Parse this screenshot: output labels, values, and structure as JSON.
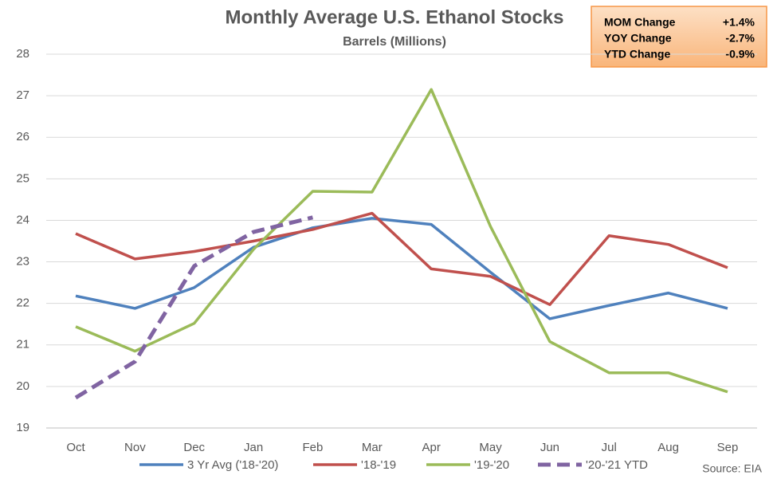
{
  "chart_data": {
    "type": "line",
    "title": "Monthly Average U.S. Ethanol Stocks",
    "subtitle": "Barrels (Millions)",
    "source": "Source: EIA",
    "summary": [
      {
        "label": "MOM Change",
        "value": "+1.4%"
      },
      {
        "label": "YOY Change",
        "value": "-2.7%"
      },
      {
        "label": "YTD Change",
        "value": "-0.9%"
      }
    ],
    "categories": [
      "Oct",
      "Nov",
      "Dec",
      "Jan",
      "Feb",
      "Mar",
      "Apr",
      "May",
      "Jun",
      "Jul",
      "Aug",
      "Sep"
    ],
    "series": [
      {
        "name": "3 Yr Avg ('18-'20)",
        "color": "#4f81bd",
        "dashed": false,
        "values": [
          22.18,
          21.88,
          22.38,
          23.35,
          23.82,
          24.05,
          23.9,
          22.75,
          21.63,
          21.95,
          22.25,
          21.88
        ]
      },
      {
        "name": "'18-'19",
        "color": "#c0504d",
        "dashed": false,
        "values": [
          23.68,
          23.07,
          23.25,
          23.5,
          23.78,
          24.17,
          22.83,
          22.65,
          21.97,
          23.63,
          23.42,
          22.86
        ]
      },
      {
        "name": "'19-'20",
        "color": "#9bbb59",
        "dashed": false,
        "values": [
          21.44,
          20.85,
          21.52,
          23.3,
          24.7,
          24.68,
          27.15,
          23.85,
          21.08,
          20.33,
          20.33,
          19.87
        ]
      },
      {
        "name": "'20-'21 YTD",
        "color": "#8064a2",
        "dashed": true,
        "values": [
          19.73,
          20.6,
          22.9,
          23.72,
          24.07,
          null,
          null,
          null,
          null,
          null,
          null,
          null
        ]
      }
    ],
    "ylim": [
      19,
      28
    ],
    "yticks": [
      19,
      20,
      21,
      22,
      23,
      24,
      25,
      26,
      27,
      28
    ],
    "grid": true,
    "legend": "bottom"
  }
}
